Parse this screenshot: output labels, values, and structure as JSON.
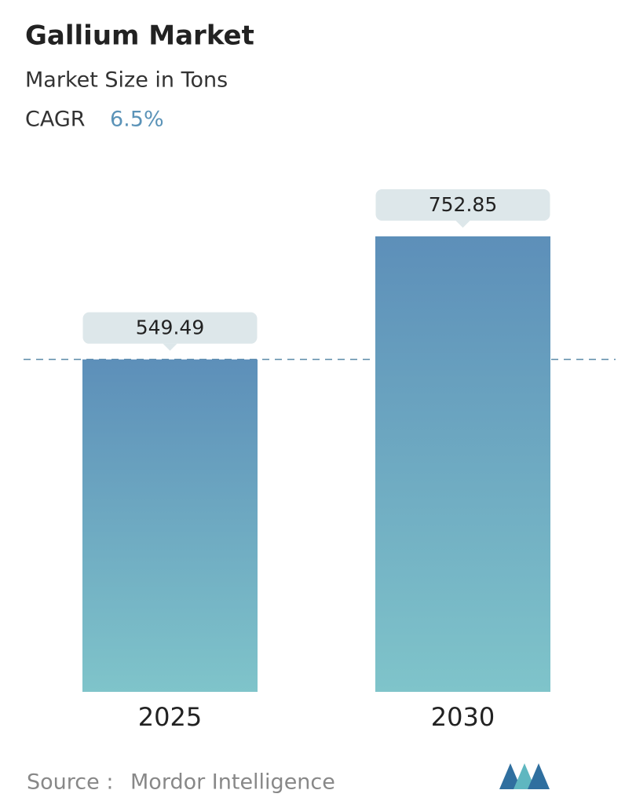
{
  "chart_data": {
    "type": "bar",
    "title": "Gallium Market",
    "subtitle": "Market Size in Tons",
    "cagr_label": "CAGR",
    "cagr": "6.5%",
    "categories": [
      "2025",
      "2030"
    ],
    "values": [
      549.49,
      752.85
    ],
    "color_top": "#5d8fb9",
    "color_bottom": "#7fc4ca",
    "source_label": "Source :",
    "source": "Mordor Intelligence"
  }
}
